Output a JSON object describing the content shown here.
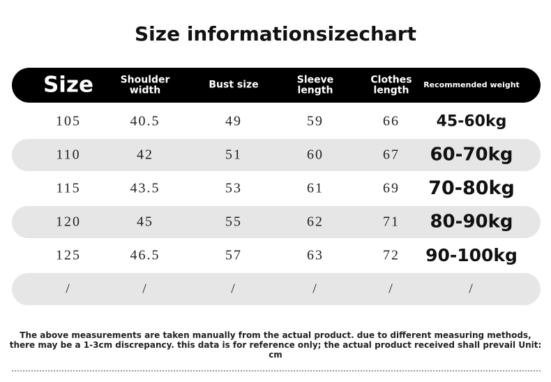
{
  "title": "Size informationsizechart",
  "table": {
    "header": [
      "Size",
      "Shoulder width",
      "Bust size",
      "Sleeve length",
      "Clothes length",
      "Recommended weight"
    ],
    "rows": [
      [
        "105",
        "40.5",
        "49",
        "59",
        "66",
        "45-60kg"
      ],
      [
        "110",
        "42",
        "51",
        "60",
        "67",
        "60-70kg"
      ],
      [
        "115",
        "43.5",
        "53",
        "61",
        "69",
        "70-80kg"
      ],
      [
        "120",
        "45",
        "55",
        "62",
        "71",
        "80-90kg"
      ],
      [
        "125",
        "46.5",
        "57",
        "63",
        "72",
        "90-100kg"
      ],
      [
        "/",
        "/",
        "/",
        "/",
        "/",
        "/"
      ]
    ]
  },
  "footnote": "The above measurements are taken manually from the actual product. due to different measuring methods, there may be a 1-3cm discrepancy. this data is for reference only; the actual product received shall prevail Unit: cm"
}
